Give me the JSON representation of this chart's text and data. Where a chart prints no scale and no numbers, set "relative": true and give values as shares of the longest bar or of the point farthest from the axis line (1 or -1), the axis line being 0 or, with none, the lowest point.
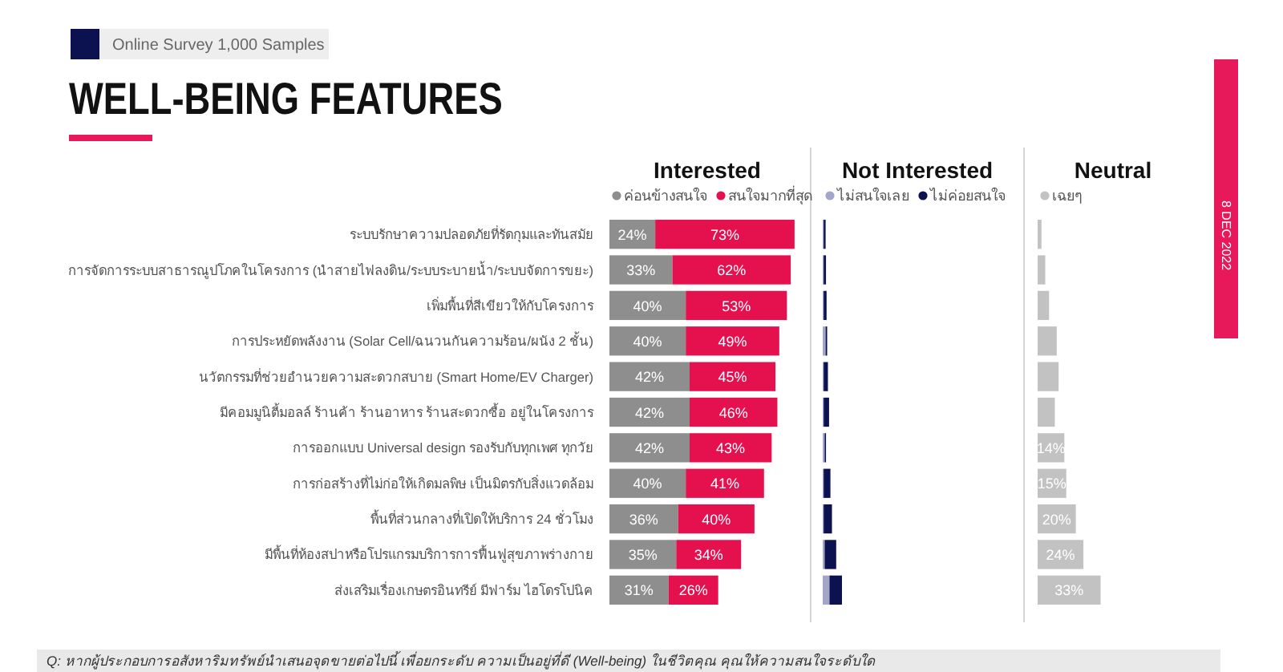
{
  "chart_data": [
    {
      "type": "other",
      "title": "WELL-BEING FEATURES",
      "subtitle": "Online Survey 1,000 Samples",
      "annotations": [
        "8 DEC 2022",
        "Q: หากผู้ประกอบการอสังหาริมทรัพย์นำเสนอจุดขายต่อไปนี้ เพื่อยกระดับ ความเป็นอยู่ที่ดี (Well-being) ในชีวิตคุณ คุณให้ความสนใจระดับใด"
      ]
    },
    {
      "type": "bar",
      "title": "Interested",
      "orientation": "horizontal",
      "stacked": true,
      "legend": "top",
      "categories": [
        "ระบบรักษาความปลอดภัยที่รัดกุมและทันสมัย",
        "การจัดการระบบสาธารณูปโภคในโครงการ (นำสายไฟลงดิน/ระบบระบายน้ำ/ระบบจัดการขยะ)",
        "เพิ่มพื้นที่สีเขียวให้กับโครงการ",
        "การประหยัดพลังงาน (Solar Cell/ฉนวนกันความร้อน/ผนัง 2 ชั้น)",
        "นวัตกรรมที่ช่วยอำนวยความสะดวกสบาย (Smart Home/EV Charger)",
        "มีคอมมูนิตี้มอลล์ ร้านค้า ร้านอาหาร ร้านสะดวกซื้อ อยู่ในโครงการ",
        "การออกแบบ Universal design รองรับกับทุกเพศ ทุกวัย",
        "การก่อสร้างที่ไม่ก่อให้เกิดมลพิษ เป็นมิตรกับสิ่งแวดล้อม",
        "พื้นที่ส่วนกลางที่เปิดให้บริการ 24 ชั่วโมง",
        "มีพื้นที่ห้องสปาหรือโปรแกรมบริการการฟื้นฟูสุขภาพร่างกาย",
        "ส่งเสริมเรื่องเกษตรอินทรีย์ มีฟาร์ม ไฮโดรโปนิค"
      ],
      "series": [
        {
          "name": "ค่อนข้างสนใจ",
          "color": "#8e8e8e",
          "values": [
            24,
            33,
            40,
            40,
            42,
            42,
            42,
            40,
            36,
            35,
            31
          ],
          "value_labels": [
            "24%",
            "33%",
            "40%",
            "40%",
            "42%",
            "42%",
            "42%",
            "40%",
            "36%",
            "35%",
            "31%"
          ]
        },
        {
          "name": "สนใจมากที่สุด",
          "color": "#e5114f",
          "values": [
            73,
            62,
            53,
            49,
            45,
            46,
            43,
            41,
            40,
            34,
            26
          ],
          "value_labels": [
            "73%",
            "62%",
            "53%",
            "49%",
            "45%",
            "46%",
            "43%",
            "41%",
            "40%",
            "34%",
            "26%"
          ]
        }
      ]
    },
    {
      "type": "bar",
      "title": "Not Interested",
      "orientation": "horizontal",
      "stacked": true,
      "relative": true,
      "legend": "top",
      "categories": [
        null,
        null,
        null,
        null,
        null,
        null,
        null,
        null,
        null,
        null,
        null
      ],
      "series": [
        {
          "name": "ไม่สนใจเลย",
          "color": "#a3a5c9",
          "values": [
            0.05,
            0.05,
            0.05,
            0.15,
            0.05,
            0.05,
            0.1,
            0.05,
            0.05,
            0.1,
            0.35
          ]
        },
        {
          "name": "ไม่ค่อยสนใจ",
          "color": "#0c1250",
          "values": [
            0.1,
            0.12,
            0.15,
            0.08,
            0.22,
            0.28,
            0.07,
            0.35,
            0.43,
            0.6,
            0.65
          ]
        }
      ]
    },
    {
      "type": "bar",
      "title": "Neutral",
      "orientation": "horizontal",
      "legend": "top",
      "categories": [
        null,
        null,
        null,
        null,
        null,
        null,
        null,
        null,
        null,
        null,
        null
      ],
      "series": [
        {
          "name": "เฉยๆ",
          "color": "#c2c2c2",
          "values": [
            2,
            4,
            6,
            10,
            11,
            9,
            14,
            15,
            20,
            24,
            33
          ],
          "value_labels": [
            null,
            null,
            null,
            null,
            null,
            null,
            "14%",
            "15%",
            "20%",
            "24%",
            "33%"
          ]
        }
      ]
    }
  ]
}
